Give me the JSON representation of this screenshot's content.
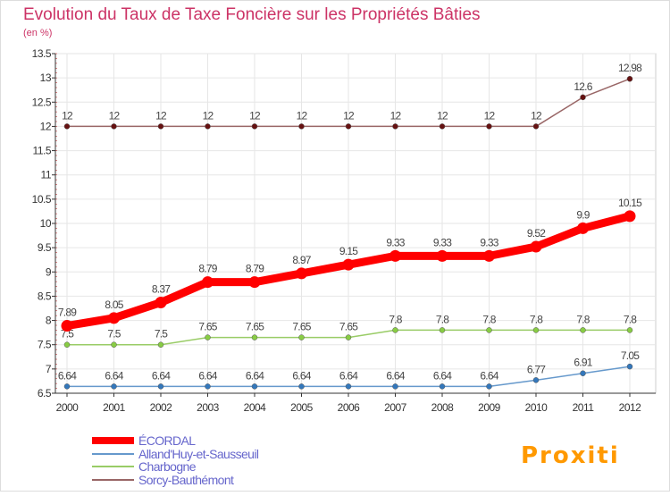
{
  "chart_data": {
    "type": "line",
    "title": "Evolution du Taux de Taxe Foncière sur les Propriétés Bâties",
    "subtitle": "(en %)",
    "categories": [
      "2000",
      "2001",
      "2002",
      "2003",
      "2004",
      "2005",
      "2006",
      "2007",
      "2008",
      "2009",
      "2010",
      "2011",
      "2012"
    ],
    "ylim": [
      6.5,
      13.5
    ],
    "yticks": [
      "6.5",
      "7",
      "7.5",
      "8",
      "8.5",
      "9",
      "9.5",
      "10",
      "10.5",
      "11",
      "11.5",
      "12",
      "12.5",
      "13",
      "13.5"
    ],
    "grid": true,
    "legend_position": "bottom-left",
    "series": [
      {
        "name": "ÉCORDAL",
        "color": "#ff0000",
        "values": [
          7.89,
          8.05,
          8.37,
          8.79,
          8.79,
          8.97,
          9.15,
          9.33,
          9.33,
          9.33,
          9.52,
          9.9,
          10.15
        ],
        "labels": [
          "7.89",
          "8.05",
          "8.37",
          "8.79",
          "8.79",
          "8.97",
          "9.15",
          "9.33",
          "9.33",
          "9.33",
          "9.52",
          "9.9",
          "10.15"
        ]
      },
      {
        "name": "Alland'Huy-et-Sausseuil",
        "color": "#6699cc",
        "values": [
          6.64,
          6.64,
          6.64,
          6.64,
          6.64,
          6.64,
          6.64,
          6.64,
          6.64,
          6.64,
          6.77,
          6.91,
          7.05
        ],
        "labels": [
          "6.64",
          "6.64",
          "6.64",
          "6.64",
          "6.64",
          "6.64",
          "6.64",
          "6.64",
          "6.64",
          "6.64",
          "6.77",
          "6.91",
          "7.05"
        ]
      },
      {
        "name": "Charbogne",
        "color": "#99cc66",
        "values": [
          7.5,
          7.5,
          7.5,
          7.65,
          7.65,
          7.65,
          7.65,
          7.8,
          7.8,
          7.8,
          7.8,
          7.8,
          7.8
        ],
        "labels": [
          "7.5",
          "7.5",
          "7.5",
          "7.65",
          "7.65",
          "7.65",
          "7.65",
          "7.8",
          "7.8",
          "7.8",
          "7.8",
          "7.8",
          "7.8"
        ]
      },
      {
        "name": "Sorcy-Bauthémont",
        "color": "#996666",
        "values": [
          12,
          12,
          12,
          12,
          12,
          12,
          12,
          12,
          12,
          12,
          12,
          12.6,
          12.98
        ],
        "labels": [
          "12",
          "12",
          "12",
          "12",
          "12",
          "12",
          "12",
          "12",
          "12",
          "12",
          "12",
          "12.6",
          "12.98"
        ]
      }
    ]
  },
  "brand": {
    "logo_text": "Proxiti"
  },
  "colors": {
    "title": "#cc3366",
    "axis": "#333333",
    "grid": "#e6e6e6"
  }
}
